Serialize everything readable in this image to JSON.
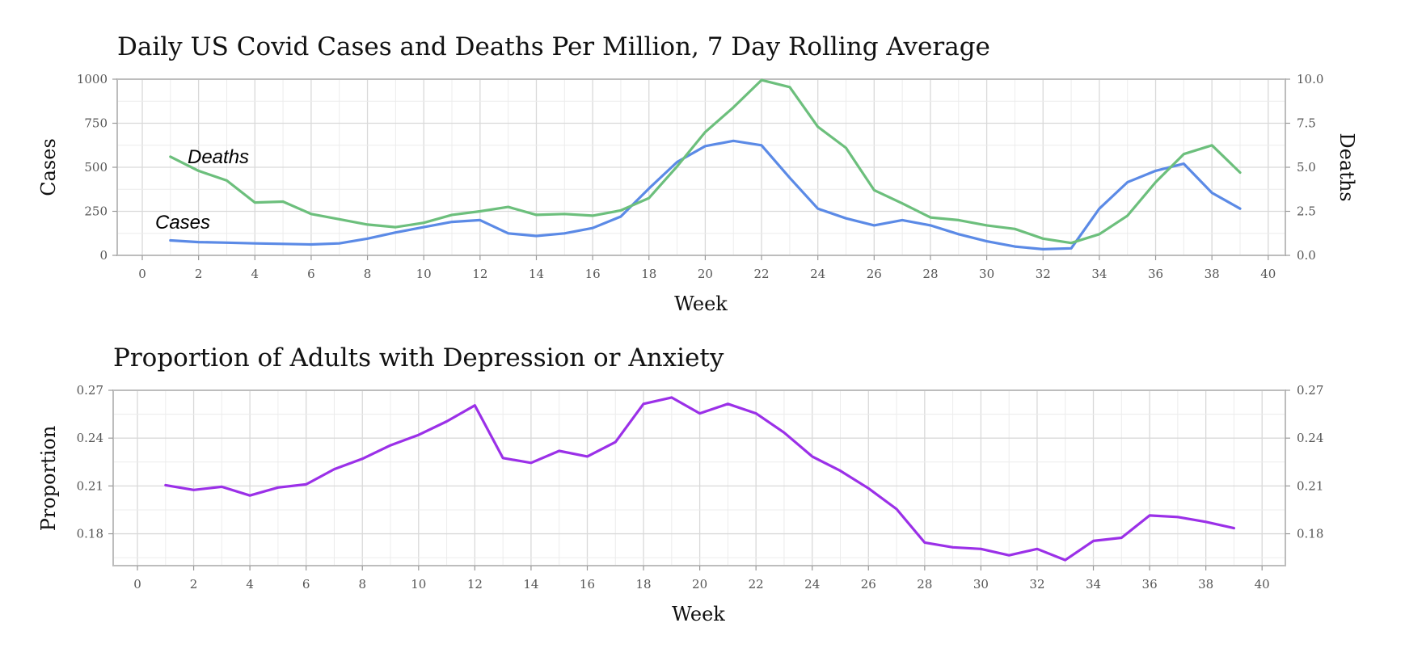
{
  "chart_data": [
    {
      "type": "line",
      "title": "Daily US Covid Cases and Deaths Per Million, 7 Day Rolling Average",
      "xlabel": "Week",
      "ylabel": "Cases",
      "ylabel_right": "Deaths",
      "xlim": [
        -1,
        41
      ],
      "ylim": [
        0,
        1000
      ],
      "ylim_right": [
        0,
        10
      ],
      "x_ticks": [
        0,
        2,
        4,
        6,
        8,
        10,
        12,
        14,
        16,
        18,
        20,
        22,
        24,
        26,
        28,
        30,
        32,
        34,
        36,
        38,
        40
      ],
      "x_tick_labels": [
        "0",
        "2",
        "4",
        "6",
        "8",
        "10",
        "12",
        "14",
        "16",
        "18",
        "20",
        "22",
        "24",
        "26",
        "28",
        "30",
        "32",
        "34",
        "36",
        "38",
        "40"
      ],
      "y_ticks": [
        0,
        250,
        500,
        750,
        1000
      ],
      "y_tick_labels": [
        "0",
        "250",
        "500",
        "750",
        "1000"
      ],
      "y_ticks_right": [
        0,
        2.5,
        5,
        7.5,
        10
      ],
      "y_tick_labels_right": [
        "0.0",
        "2.5",
        "5.0",
        "7.5",
        "10.0"
      ],
      "grid": true,
      "annotations": [
        {
          "text": "Deaths",
          "x": 2.5,
          "y": 560
        },
        {
          "text": "Cases",
          "x": 1.5,
          "y": 200
        }
      ],
      "x": [
        1,
        2,
        3,
        4,
        5,
        6,
        7,
        8,
        9,
        10,
        11,
        12,
        13,
        14,
        15,
        16,
        17,
        18,
        19,
        20,
        21,
        22,
        23,
        24,
        25,
        26,
        27,
        28,
        29,
        30,
        31,
        32,
        33,
        34,
        35,
        36,
        37,
        38,
        39
      ],
      "series": [
        {
          "name": "Cases",
          "axis": "left",
          "color": "#5b8ae6",
          "values": [
            85,
            75,
            72,
            68,
            65,
            62,
            68,
            95,
            130,
            160,
            190,
            200,
            125,
            110,
            125,
            155,
            220,
            380,
            530,
            620,
            650,
            625,
            440,
            265,
            210,
            170,
            200,
            170,
            120,
            80,
            50,
            35,
            40,
            265,
            415,
            480,
            520,
            355,
            265
          ]
        },
        {
          "name": "Deaths",
          "axis": "right",
          "color": "#6cbf7c",
          "values": [
            5.6,
            4.8,
            4.25,
            3.0,
            3.05,
            2.35,
            2.05,
            1.75,
            1.6,
            1.85,
            2.3,
            2.5,
            2.75,
            2.3,
            2.35,
            2.25,
            2.55,
            3.25,
            5.05,
            7.0,
            8.4,
            9.95,
            9.55,
            7.3,
            6.1,
            3.7,
            2.95,
            2.15,
            2.0,
            1.7,
            1.5,
            0.95,
            0.7,
            1.2,
            2.25,
            4.15,
            5.75,
            6.25,
            4.7
          ]
        }
      ]
    },
    {
      "type": "line",
      "title": "Proportion of Adults with Depression or Anxiety",
      "xlabel": "Week",
      "ylabel": "Proportion",
      "xlim": [
        -1,
        41
      ],
      "ylim": [
        0.16,
        0.27
      ],
      "x_ticks": [
        0,
        2,
        4,
        6,
        8,
        10,
        12,
        14,
        16,
        18,
        20,
        22,
        24,
        26,
        28,
        30,
        32,
        34,
        36,
        38,
        40
      ],
      "x_tick_labels": [
        "0",
        "2",
        "4",
        "6",
        "8",
        "10",
        "12",
        "14",
        "16",
        "18",
        "20",
        "22",
        "24",
        "26",
        "28",
        "30",
        "32",
        "34",
        "36",
        "38",
        "40"
      ],
      "y_ticks": [
        0.18,
        0.21,
        0.24,
        0.27
      ],
      "y_tick_labels": [
        "0.18",
        "0.21",
        "0.24",
        "0.27"
      ],
      "y_tick_labels_right": [
        "0.18",
        "0.21",
        "0.24",
        "0.27"
      ],
      "grid": true,
      "x": [
        1,
        2,
        3,
        4,
        5,
        6,
        7,
        8,
        9,
        10,
        11,
        12,
        13,
        14,
        15,
        16,
        17,
        18,
        19,
        20,
        21,
        22,
        23,
        24,
        25,
        26,
        27,
        28,
        29,
        30,
        31,
        32,
        33,
        34,
        35,
        36,
        37,
        38,
        39
      ],
      "series": [
        {
          "name": "Proportion",
          "axis": "left",
          "color": "#9b30e8",
          "values": [
            0.2105,
            0.2075,
            0.2095,
            0.204,
            0.209,
            0.211,
            0.2205,
            0.227,
            0.2355,
            0.242,
            0.2505,
            0.2605,
            0.2275,
            0.2245,
            0.232,
            0.2285,
            0.2375,
            0.2615,
            0.2655,
            0.2555,
            0.2615,
            0.2555,
            0.2435,
            0.2285,
            0.2195,
            0.2085,
            0.1955,
            0.1745,
            0.1715,
            0.1705,
            0.1665,
            0.1705,
            0.1635,
            0.1755,
            0.1775,
            0.1915,
            0.1905,
            0.1875,
            0.1835
          ]
        }
      ]
    }
  ]
}
